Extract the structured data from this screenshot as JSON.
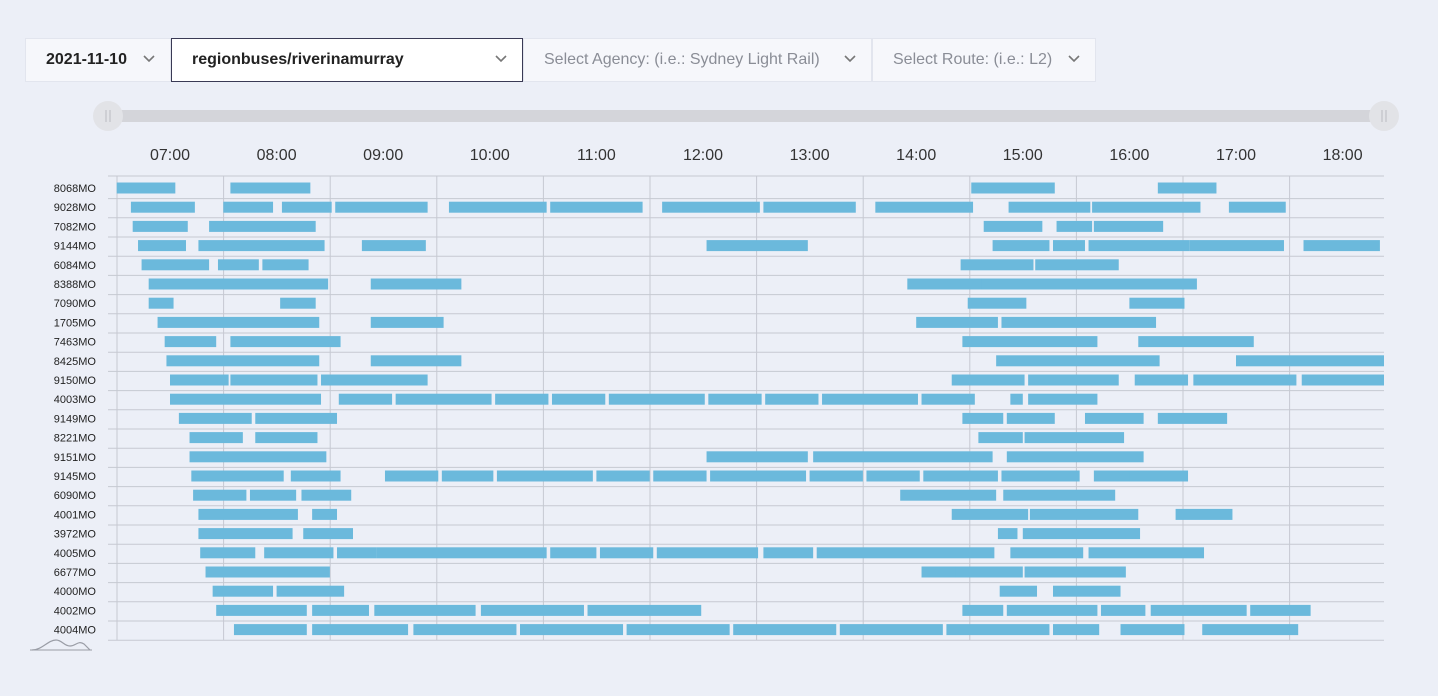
{
  "toolbar": {
    "date": "2021-11-10",
    "feed": "regionbuses/riverinamurray",
    "agency_placeholder": "Select Agency: (i.e.: Sydney Light Rail)",
    "route_placeholder": "Select Route: (i.e.: L2)"
  },
  "slider": {
    "range_start": 0.0,
    "range_end": 1.0
  },
  "colors": {
    "bar": "#6bb9dc",
    "grid": "#c6c9d2",
    "background": "#eceff7",
    "slider_track": "#d4d5da",
    "slider_handle": "#e2e3e7"
  },
  "chart_data": {
    "type": "gantt",
    "title": "",
    "xlabel": "",
    "ylabel": "",
    "x_ticks": [
      "07:00",
      "08:00",
      "09:00",
      "10:00",
      "11:00",
      "12:00",
      "13:00",
      "14:00",
      "15:00",
      "16:00",
      "17:00",
      "18:00"
    ],
    "xlim": [
      "06:30",
      "18:25"
    ],
    "grid": true,
    "rows": [
      {
        "label": "8068MO",
        "trips": [
          [
            "06:30",
            "07:03"
          ],
          [
            "07:34",
            "08:19"
          ],
          [
            "14:31",
            "15:18"
          ],
          [
            "16:16",
            "16:49"
          ]
        ]
      },
      {
        "label": "9028MO",
        "trips": [
          [
            "06:38",
            "07:14"
          ],
          [
            "07:30",
            "07:58"
          ],
          [
            "08:03",
            "08:31"
          ],
          [
            "08:33",
            "09:25"
          ],
          [
            "09:37",
            "10:32"
          ],
          [
            "10:34",
            "11:26"
          ],
          [
            "11:37",
            "12:32"
          ],
          [
            "12:34",
            "13:26"
          ],
          [
            "13:37",
            "14:32"
          ],
          [
            "14:52",
            "15:38"
          ],
          [
            "15:39",
            "16:40"
          ],
          [
            "16:56",
            "17:28"
          ]
        ]
      },
      {
        "label": "7082MO",
        "trips": [
          [
            "06:39",
            "07:10"
          ],
          [
            "07:22",
            "08:22"
          ],
          [
            "14:38",
            "15:11"
          ],
          [
            "15:19",
            "15:39"
          ],
          [
            "15:40",
            "16:19"
          ]
        ]
      },
      {
        "label": "9144MO",
        "trips": [
          [
            "06:42",
            "07:09"
          ],
          [
            "07:16",
            "08:27"
          ],
          [
            "08:48",
            "09:24"
          ],
          [
            "12:02",
            "12:59"
          ],
          [
            "14:43",
            "15:15"
          ],
          [
            "15:17",
            "15:35"
          ],
          [
            "15:37",
            "16:34"
          ],
          [
            "16:34",
            "17:27"
          ],
          [
            "17:38",
            "18:21"
          ]
        ]
      },
      {
        "label": "6084MO",
        "trips": [
          [
            "06:44",
            "07:22"
          ],
          [
            "07:27",
            "07:50"
          ],
          [
            "07:52",
            "08:18"
          ],
          [
            "14:25",
            "15:06"
          ],
          [
            "15:07",
            "15:54"
          ]
        ]
      },
      {
        "label": "8388MO",
        "trips": [
          [
            "06:48",
            "08:29"
          ],
          [
            "08:53",
            "09:44"
          ],
          [
            "13:55",
            "14:45"
          ],
          [
            "14:37",
            "16:38"
          ]
        ]
      },
      {
        "label": "7090MO",
        "trips": [
          [
            "06:48",
            "07:02"
          ],
          [
            "08:02",
            "08:22"
          ],
          [
            "14:29",
            "15:02"
          ],
          [
            "16:00",
            "16:31"
          ]
        ]
      },
      {
        "label": "1705MO",
        "trips": [
          [
            "06:53",
            "08:24"
          ],
          [
            "08:53",
            "09:34"
          ],
          [
            "14:00",
            "14:46"
          ],
          [
            "14:48",
            "16:15"
          ]
        ]
      },
      {
        "label": "7463MO",
        "trips": [
          [
            "06:57",
            "07:26"
          ],
          [
            "07:34",
            "08:36"
          ],
          [
            "14:26",
            "15:42"
          ],
          [
            "16:05",
            "17:10"
          ]
        ]
      },
      {
        "label": "8425MO",
        "trips": [
          [
            "06:58",
            "08:24"
          ],
          [
            "08:53",
            "09:44"
          ],
          [
            "14:45",
            "16:17"
          ],
          [
            "17:00",
            "18:25"
          ]
        ]
      },
      {
        "label": "9150MO",
        "trips": [
          [
            "07:00",
            "07:33"
          ],
          [
            "07:34",
            "08:23"
          ],
          [
            "08:25",
            "09:25"
          ],
          [
            "14:20",
            "15:01"
          ],
          [
            "15:03",
            "15:54"
          ],
          [
            "16:03",
            "16:33"
          ],
          [
            "16:36",
            "17:34"
          ],
          [
            "17:37",
            "18:30"
          ]
        ]
      },
      {
        "label": "4003MO",
        "trips": [
          [
            "07:00",
            "08:25"
          ],
          [
            "08:35",
            "09:05"
          ],
          [
            "09:07",
            "10:01"
          ],
          [
            "10:03",
            "10:33"
          ],
          [
            "10:35",
            "11:05"
          ],
          [
            "11:07",
            "12:01"
          ],
          [
            "12:03",
            "12:33"
          ],
          [
            "12:35",
            "13:05"
          ],
          [
            "13:07",
            "14:01"
          ],
          [
            "14:03",
            "14:33"
          ],
          [
            "14:53",
            "15:00"
          ],
          [
            "15:03",
            "15:42"
          ]
        ]
      },
      {
        "label": "9149MO",
        "trips": [
          [
            "07:05",
            "07:46"
          ],
          [
            "07:48",
            "08:34"
          ],
          [
            "14:26",
            "14:49"
          ],
          [
            "14:51",
            "15:18"
          ],
          [
            "15:35",
            "16:08"
          ],
          [
            "16:16",
            "16:55"
          ]
        ]
      },
      {
        "label": "8221MO",
        "trips": [
          [
            "07:11",
            "07:41"
          ],
          [
            "07:48",
            "08:23"
          ],
          [
            "14:35",
            "15:00"
          ],
          [
            "15:01",
            "15:57"
          ]
        ]
      },
      {
        "label": "9151MO",
        "trips": [
          [
            "07:11",
            "08:28"
          ],
          [
            "12:02",
            "12:59"
          ],
          [
            "13:02",
            "14:43"
          ],
          [
            "14:51",
            "16:08"
          ]
        ]
      },
      {
        "label": "9145MO",
        "trips": [
          [
            "07:12",
            "08:04"
          ],
          [
            "08:08",
            "08:36"
          ],
          [
            "09:01",
            "09:31"
          ],
          [
            "09:33",
            "10:02"
          ],
          [
            "10:04",
            "10:58"
          ],
          [
            "11:00",
            "11:30"
          ],
          [
            "11:32",
            "12:02"
          ],
          [
            "12:04",
            "12:58"
          ],
          [
            "13:00",
            "13:30"
          ],
          [
            "13:32",
            "14:02"
          ],
          [
            "14:04",
            "14:46"
          ],
          [
            "14:48",
            "15:32"
          ],
          [
            "15:40",
            "16:12"
          ],
          [
            "16:00",
            "16:33"
          ]
        ]
      },
      {
        "label": "6090MO",
        "trips": [
          [
            "07:13",
            "07:43"
          ],
          [
            "07:45",
            "08:11"
          ],
          [
            "08:14",
            "08:42"
          ],
          [
            "13:51",
            "14:45"
          ],
          [
            "14:49",
            "15:52"
          ]
        ]
      },
      {
        "label": "4001MO",
        "trips": [
          [
            "07:16",
            "08:12"
          ],
          [
            "08:20",
            "08:34"
          ],
          [
            "14:20",
            "15:03"
          ],
          [
            "15:04",
            "16:05"
          ],
          [
            "16:26",
            "16:58"
          ]
        ]
      },
      {
        "label": "3972MO",
        "trips": [
          [
            "07:16",
            "08:09"
          ],
          [
            "08:15",
            "08:43"
          ],
          [
            "14:46",
            "14:57"
          ],
          [
            "15:00",
            "16:06"
          ]
        ]
      },
      {
        "label": "4005MO",
        "trips": [
          [
            "07:17",
            "07:48"
          ],
          [
            "07:53",
            "08:32"
          ],
          [
            "08:34",
            "08:56"
          ],
          [
            "08:56",
            "10:32"
          ],
          [
            "10:34",
            "11:00"
          ],
          [
            "11:02",
            "11:32"
          ],
          [
            "11:34",
            "12:31"
          ],
          [
            "12:34",
            "13:02"
          ],
          [
            "13:04",
            "14:44"
          ],
          [
            "14:53",
            "15:34"
          ],
          [
            "15:37",
            "16:42"
          ]
        ]
      },
      {
        "label": "6677MO",
        "trips": [
          [
            "07:20",
            "08:30"
          ],
          [
            "14:03",
            "14:28"
          ],
          [
            "14:22",
            "15:00"
          ],
          [
            "15:01",
            "15:58"
          ]
        ]
      },
      {
        "label": "4000MO",
        "trips": [
          [
            "07:24",
            "07:58"
          ],
          [
            "08:00",
            "08:38"
          ],
          [
            "14:47",
            "15:08"
          ],
          [
            "15:17",
            "15:55"
          ]
        ]
      },
      {
        "label": "4002MO",
        "trips": [
          [
            "07:26",
            "08:17"
          ],
          [
            "08:20",
            "08:52"
          ],
          [
            "08:55",
            "09:52"
          ],
          [
            "09:55",
            "10:53"
          ],
          [
            "10:55",
            "11:59"
          ],
          [
            "14:26",
            "14:49"
          ],
          [
            "14:51",
            "15:42"
          ],
          [
            "15:44",
            "16:09"
          ],
          [
            "16:12",
            "17:06"
          ],
          [
            "17:08",
            "17:42"
          ]
        ]
      },
      {
        "label": "4004MO",
        "trips": [
          [
            "07:36",
            "08:17"
          ],
          [
            "08:20",
            "09:14"
          ],
          [
            "09:17",
            "10:15"
          ],
          [
            "10:17",
            "11:15"
          ],
          [
            "11:17",
            "12:15"
          ],
          [
            "12:17",
            "13:15"
          ],
          [
            "13:17",
            "14:15"
          ],
          [
            "14:17",
            "15:15"
          ],
          [
            "15:17",
            "15:43"
          ],
          [
            "15:55",
            "16:31"
          ],
          [
            "16:41",
            "17:35"
          ]
        ]
      }
    ]
  }
}
